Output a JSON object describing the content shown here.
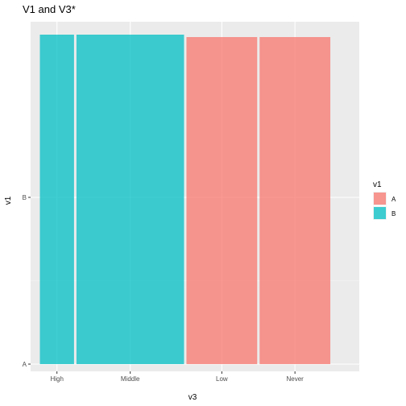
{
  "chart_data": {
    "type": "bar",
    "title": "V1 and V3*",
    "xlabel": "v3",
    "ylabel": "v1",
    "x_categories": [
      "High",
      "Middle",
      "Low",
      "Never"
    ],
    "y_categories": [
      "A",
      "B"
    ],
    "bars": [
      {
        "category": "High",
        "v1": "B",
        "width_fraction": 0.117
      },
      {
        "category": "Middle",
        "v1": "B",
        "width_fraction": 0.352
      },
      {
        "category": "Low",
        "v1": "A",
        "width_fraction": 0.234
      },
      {
        "category": "Never",
        "v1": "A",
        "width_fraction": 0.234
      }
    ],
    "legend": {
      "title": "v1",
      "position": "right",
      "entries": [
        {
          "label": "A",
          "color": "#F8766D"
        },
        {
          "label": "B",
          "color": "#00BFC4"
        }
      ]
    },
    "grid": true,
    "panel_background": "#EBEBEB"
  }
}
